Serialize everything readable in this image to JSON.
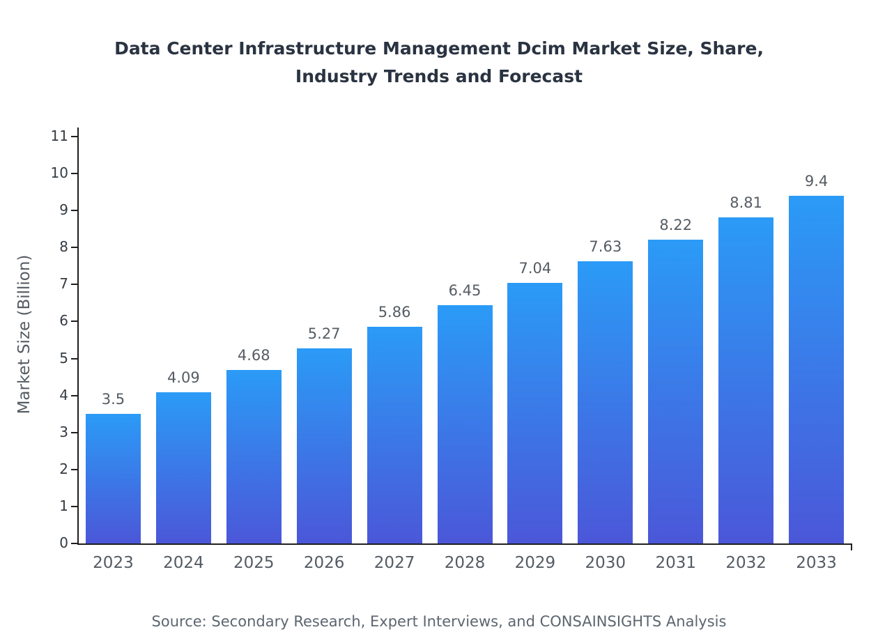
{
  "chart_data": {
    "type": "bar",
    "title": "Data Center Infrastructure Management Dcim Market Size, Share, Industry Trends and Forecast",
    "ylabel": "Market Size (Billion)",
    "xlabel": "",
    "categories": [
      "2023",
      "2024",
      "2025",
      "2026",
      "2027",
      "2028",
      "2029",
      "2030",
      "2031",
      "2032",
      "2033"
    ],
    "values": [
      3.5,
      4.09,
      4.68,
      5.27,
      5.86,
      6.45,
      7.04,
      7.63,
      8.22,
      8.81,
      9.4
    ],
    "value_labels": [
      "3.5",
      "4.09",
      "4.68",
      "5.27",
      "5.86",
      "6.45",
      "7.04",
      "7.63",
      "8.22",
      "8.81",
      "9.4"
    ],
    "ylim": [
      0,
      11
    ],
    "ytick_step": 1,
    "grid": false,
    "legend": "none",
    "bar_color_top": "#2b9bf7",
    "bar_color_bottom": "#4b57d8",
    "source": "Source: Secondary Research, Expert Interviews, and CONSAINSIGHTS Analysis"
  }
}
